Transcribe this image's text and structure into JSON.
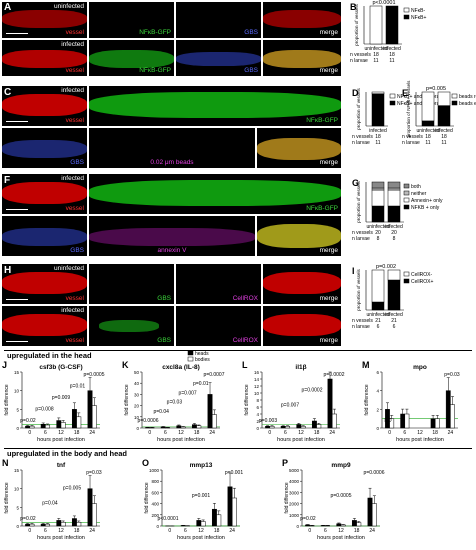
{
  "figure": {
    "panel_letters": [
      "A",
      "B",
      "C",
      "D",
      "E",
      "F",
      "G",
      "H",
      "I",
      "J",
      "K",
      "L",
      "M",
      "N",
      "O",
      "P"
    ]
  },
  "panelA": {
    "row1_label": "uninfected",
    "row2_label": "infected",
    "channels": [
      "vessel",
      "NFκB-GFP",
      "GBS",
      "merge"
    ]
  },
  "panelC": {
    "label": "infected",
    "channels_top": [
      "vessel",
      "NFκB-GFP"
    ],
    "channels_bottom": [
      "GBS",
      "0.02 μm beads",
      "merge"
    ]
  },
  "panelF": {
    "label": "infected",
    "channels_top": [
      "vessel",
      "NFκB-GFP"
    ],
    "channels_bottom": [
      "GBS",
      "annexin V",
      "merge"
    ]
  },
  "panelH": {
    "row1_label": "uninfected",
    "row2_label": "infected",
    "channels": [
      "vessel",
      "GBS",
      "CellROX",
      "merge"
    ]
  },
  "section_heads": {
    "head": "upregulated in the head",
    "body_head": "upregulated in the body and head"
  },
  "chart_data": [
    {
      "panel": "B",
      "type": "bar",
      "stacked": true,
      "categories": [
        "uninfected",
        "infected"
      ],
      "series": [
        {
          "name": "NFκB+",
          "values": [
            0.0,
            1.0
          ],
          "color": "#000000"
        },
        {
          "name": "NFκB-",
          "values": [
            1.0,
            0.0
          ],
          "color": "#ffffff"
        }
      ],
      "ylabel": "proportion of vessels",
      "ylim": [
        0,
        1
      ],
      "annotation": "p<0.0001",
      "footer": [
        {
          "label": "n vessels",
          "values": [
            "18",
            "18"
          ]
        },
        {
          "label": "n larvae",
          "values": [
            "11",
            "11"
          ]
        }
      ]
    },
    {
      "panel": "D",
      "type": "bar",
      "stacked": true,
      "categories": [
        "infected"
      ],
      "series": [
        {
          "name": "NFκB+ and perforation+",
          "values": [
            0.95
          ],
          "color": "#000000"
        },
        {
          "name": "NFκB+ and perforation-",
          "values": [
            0.05
          ],
          "color": "#ffffff"
        }
      ],
      "ylabel": "proportion of vessels",
      "ylim": [
        0,
        1
      ],
      "footer": [
        {
          "label": "n vessels",
          "values": [
            "18"
          ]
        },
        {
          "label": "n larvae",
          "values": [
            "11"
          ]
        }
      ]
    },
    {
      "panel": "E",
      "type": "bar",
      "stacked": true,
      "categories": [
        "uninfected",
        "infected"
      ],
      "series": [
        {
          "name": "beads escaped",
          "values": [
            0.15,
            0.6
          ],
          "color": "#000000"
        },
        {
          "name": "beads retained",
          "values": [
            0.85,
            0.4
          ],
          "color": "#ffffff"
        }
      ],
      "ylabel": "proportion of NFκB+ vessels",
      "ylim": [
        0,
        1
      ],
      "annotation": "p=0.005",
      "footer": [
        {
          "label": "n vessels",
          "values": [
            "18",
            "18"
          ]
        },
        {
          "label": "n larvae",
          "values": [
            "11",
            "11"
          ]
        }
      ]
    },
    {
      "panel": "G",
      "type": "bar",
      "stacked": true,
      "categories": [
        "uninfected",
        "infected"
      ],
      "series": [
        {
          "name": "NFKB + only",
          "values": [
            0.4,
            0.4
          ],
          "color": "#000000"
        },
        {
          "name": "Annexin+ only",
          "values": [
            0.4,
            0.4
          ],
          "color": "#ffffff"
        },
        {
          "name": "neither",
          "values": [
            0.05,
            0.05
          ],
          "color": "#bbbbbb"
        },
        {
          "name": "both",
          "values": [
            0.15,
            0.15
          ],
          "color": "#888888"
        }
      ],
      "ylabel": "proportion of vessels",
      "ylim": [
        0,
        1
      ],
      "footer": [
        {
          "label": "n vessels",
          "values": [
            "20",
            "20"
          ]
        },
        {
          "label": "n larvae",
          "values": [
            "8",
            "8"
          ]
        }
      ]
    },
    {
      "panel": "I",
      "type": "bar",
      "stacked": true,
      "categories": [
        "uninfected",
        "infected"
      ],
      "series": [
        {
          "name": "CellROX+",
          "values": [
            0.2,
            0.75
          ],
          "color": "#000000"
        },
        {
          "name": "CellROX-",
          "values": [
            0.8,
            0.25
          ],
          "color": "#ffffff"
        }
      ],
      "ylabel": "proportion of vessels",
      "ylim": [
        0,
        1
      ],
      "annotation": "p=0.002",
      "footer": [
        {
          "label": "n vessels",
          "values": [
            "21",
            "21"
          ]
        },
        {
          "label": "n larvae",
          "values": [
            "6",
            "6"
          ]
        }
      ]
    },
    {
      "panel": "J",
      "type": "bar",
      "title": "csf3b (G-CSF)",
      "categories": [
        "0",
        "6",
        "12",
        "18",
        "24"
      ],
      "series": [
        {
          "name": "heads",
          "values": [
            0.5,
            1.0,
            2.0,
            5.0,
            10.0
          ]
        },
        {
          "name": "bodies",
          "values": [
            0.5,
            0.8,
            1.5,
            3.0,
            6.0
          ]
        }
      ],
      "xlabel": "hours post infection",
      "ylabel": "fold difference",
      "ylim": [
        0,
        15
      ],
      "yticks": [
        "0",
        "5",
        "10",
        "15"
      ],
      "annotations": [
        "p=0.02",
        "p=0.008",
        "p=0.009",
        "p=0.01",
        "p=0.0005"
      ]
    },
    {
      "panel": "K",
      "type": "bar",
      "title": "cxcl8a (IL-8)",
      "categories": [
        "0",
        "6",
        "12",
        "18",
        "24"
      ],
      "series": [
        {
          "name": "heads",
          "values": [
            0.5,
            1.0,
            2.0,
            3.0,
            30.0
          ]
        },
        {
          "name": "bodies",
          "values": [
            0.5,
            0.5,
            1.0,
            2.0,
            12.0
          ]
        }
      ],
      "xlabel": "hours post infection",
      "ylabel": "fold difference",
      "ylim": [
        0,
        50
      ],
      "yticks": [
        "0",
        "10",
        "20",
        "30",
        "40",
        "50"
      ],
      "annotations": [
        "p=0.0006",
        "p=0.04",
        "p=0.03",
        "p=0.007",
        "p=0.01",
        "p=0.0007"
      ]
    },
    {
      "panel": "L",
      "type": "bar",
      "title": "il1β",
      "categories": [
        "0",
        "6",
        "12",
        "18",
        "24"
      ],
      "series": [
        {
          "name": "heads",
          "values": [
            0.5,
            0.5,
            1.0,
            2.0,
            14.0
          ]
        },
        {
          "name": "bodies",
          "values": [
            0.5,
            0.5,
            0.5,
            1.0,
            4.0
          ]
        }
      ],
      "xlabel": "hours post infection",
      "ylabel": "fold difference",
      "ylim": [
        0,
        16
      ],
      "yticks": [
        "0",
        "2",
        "4",
        "6",
        "8",
        "10",
        "12",
        "14",
        "16"
      ],
      "annotations": [
        "p=0.003",
        "p=0.007",
        "p=0.0002",
        "p=0.0002"
      ]
    },
    {
      "panel": "M",
      "type": "bar",
      "title": "mpo",
      "categories": [
        "0",
        "6",
        "12",
        "18",
        "24"
      ],
      "series": [
        {
          "name": "heads",
          "values": [
            2.0,
            1.5,
            null,
            1.0,
            4.0
          ]
        },
        {
          "name": "bodies",
          "values": [
            1.0,
            1.5,
            null,
            1.0,
            2.5
          ]
        }
      ],
      "xlabel": "hours post infection",
      "ylabel": "fold difference",
      "ylim": [
        0,
        6
      ],
      "yticks": [
        "0",
        "2",
        "4",
        "6"
      ],
      "annotations": [
        "ND",
        "p=0.03"
      ]
    },
    {
      "panel": "N",
      "type": "bar",
      "title": "tnf",
      "categories": [
        "0",
        "6",
        "12",
        "18",
        "24"
      ],
      "series": [
        {
          "name": "heads",
          "values": [
            0.5,
            0.5,
            1.5,
            2.0,
            10.0
          ]
        },
        {
          "name": "bodies",
          "values": [
            0.5,
            0.5,
            1.0,
            1.0,
            6.0
          ]
        }
      ],
      "xlabel": "hours post infection",
      "ylabel": "fold difference",
      "ylim": [
        0,
        15
      ],
      "yticks": [
        "0",
        "5",
        "10",
        "15"
      ],
      "annotations": [
        "p=0.02",
        "p=0.04",
        "p=0.005",
        "p=0.03"
      ]
    },
    {
      "panel": "O",
      "type": "bar",
      "title": "mmp13",
      "categories": [
        "0",
        "6",
        "12",
        "18",
        "24"
      ],
      "series": [
        {
          "name": "heads",
          "values": [
            1.0,
            10.0,
            100.0,
            300.0,
            700.0
          ]
        },
        {
          "name": "bodies",
          "values": [
            1.0,
            5.0,
            80.0,
            200.0,
            500.0
          ]
        }
      ],
      "xlabel": "hours post infection",
      "ylabel": "fold difference",
      "ylim": [
        0,
        1000
      ],
      "yticks": [
        "0",
        "200",
        "400",
        "600",
        "800",
        "1000"
      ],
      "annotations": [
        "p<0.0001",
        "p=0.001",
        "p=0.001"
      ]
    },
    {
      "panel": "P",
      "type": "bar",
      "title": "mmp9",
      "categories": [
        "0",
        "6",
        "12",
        "18",
        "24"
      ],
      "series": [
        {
          "name": "heads",
          "values": [
            100.0,
            50.0,
            200.0,
            500.0,
            2500.0
          ]
        },
        {
          "name": "bodies",
          "values": [
            50.0,
            50.0,
            100.0,
            300.0,
            2000.0
          ]
        }
      ],
      "xlabel": "hours post infection",
      "ylabel": "fold difference",
      "ylim": [
        0,
        5000
      ],
      "yticks": [
        "0",
        "1000",
        "2000",
        "3000",
        "4000",
        "5000"
      ],
      "annotations": [
        "p=0.02",
        "p=0.0005",
        "p=0.0006"
      ]
    }
  ]
}
